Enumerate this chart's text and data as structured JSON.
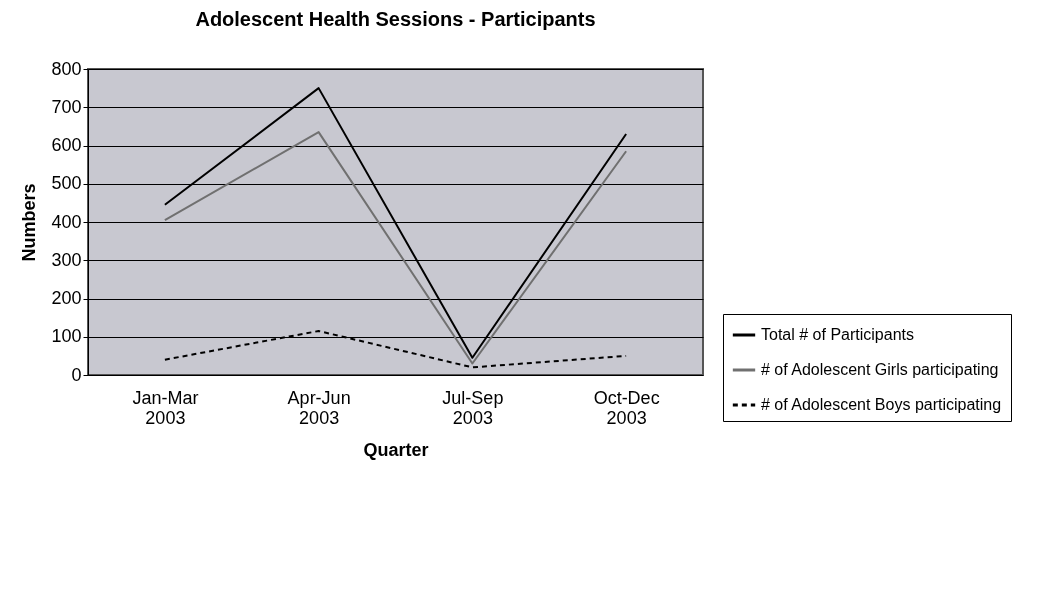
{
  "chart_data": {
    "type": "line",
    "title": "Adolescent Health Sessions - Participants",
    "xlabel": "Quarter",
    "ylabel": "Numbers",
    "categories": [
      "Jan-Mar 2003",
      "Apr-Jun 2003",
      "Jul-Sep 2003",
      "Oct-Dec 2003"
    ],
    "series": [
      {
        "name": "Total # of Participants",
        "color": "#000000",
        "line_style": "solid",
        "values": [
          445,
          750,
          45,
          630
        ]
      },
      {
        "name": "# of Adolescent Girls participating",
        "color": "#707070",
        "line_style": "solid",
        "values": [
          405,
          635,
          30,
          585
        ]
      },
      {
        "name": "# of Adolescent Boys participating",
        "color": "#000000",
        "line_style": "dashed",
        "values": [
          40,
          115,
          20,
          50
        ]
      }
    ],
    "ylim": [
      0,
      800
    ],
    "yticks": [
      0,
      100,
      200,
      300,
      400,
      500,
      600,
      700,
      800
    ],
    "grid": "y",
    "legend": "bottom right",
    "marker": "none"
  }
}
